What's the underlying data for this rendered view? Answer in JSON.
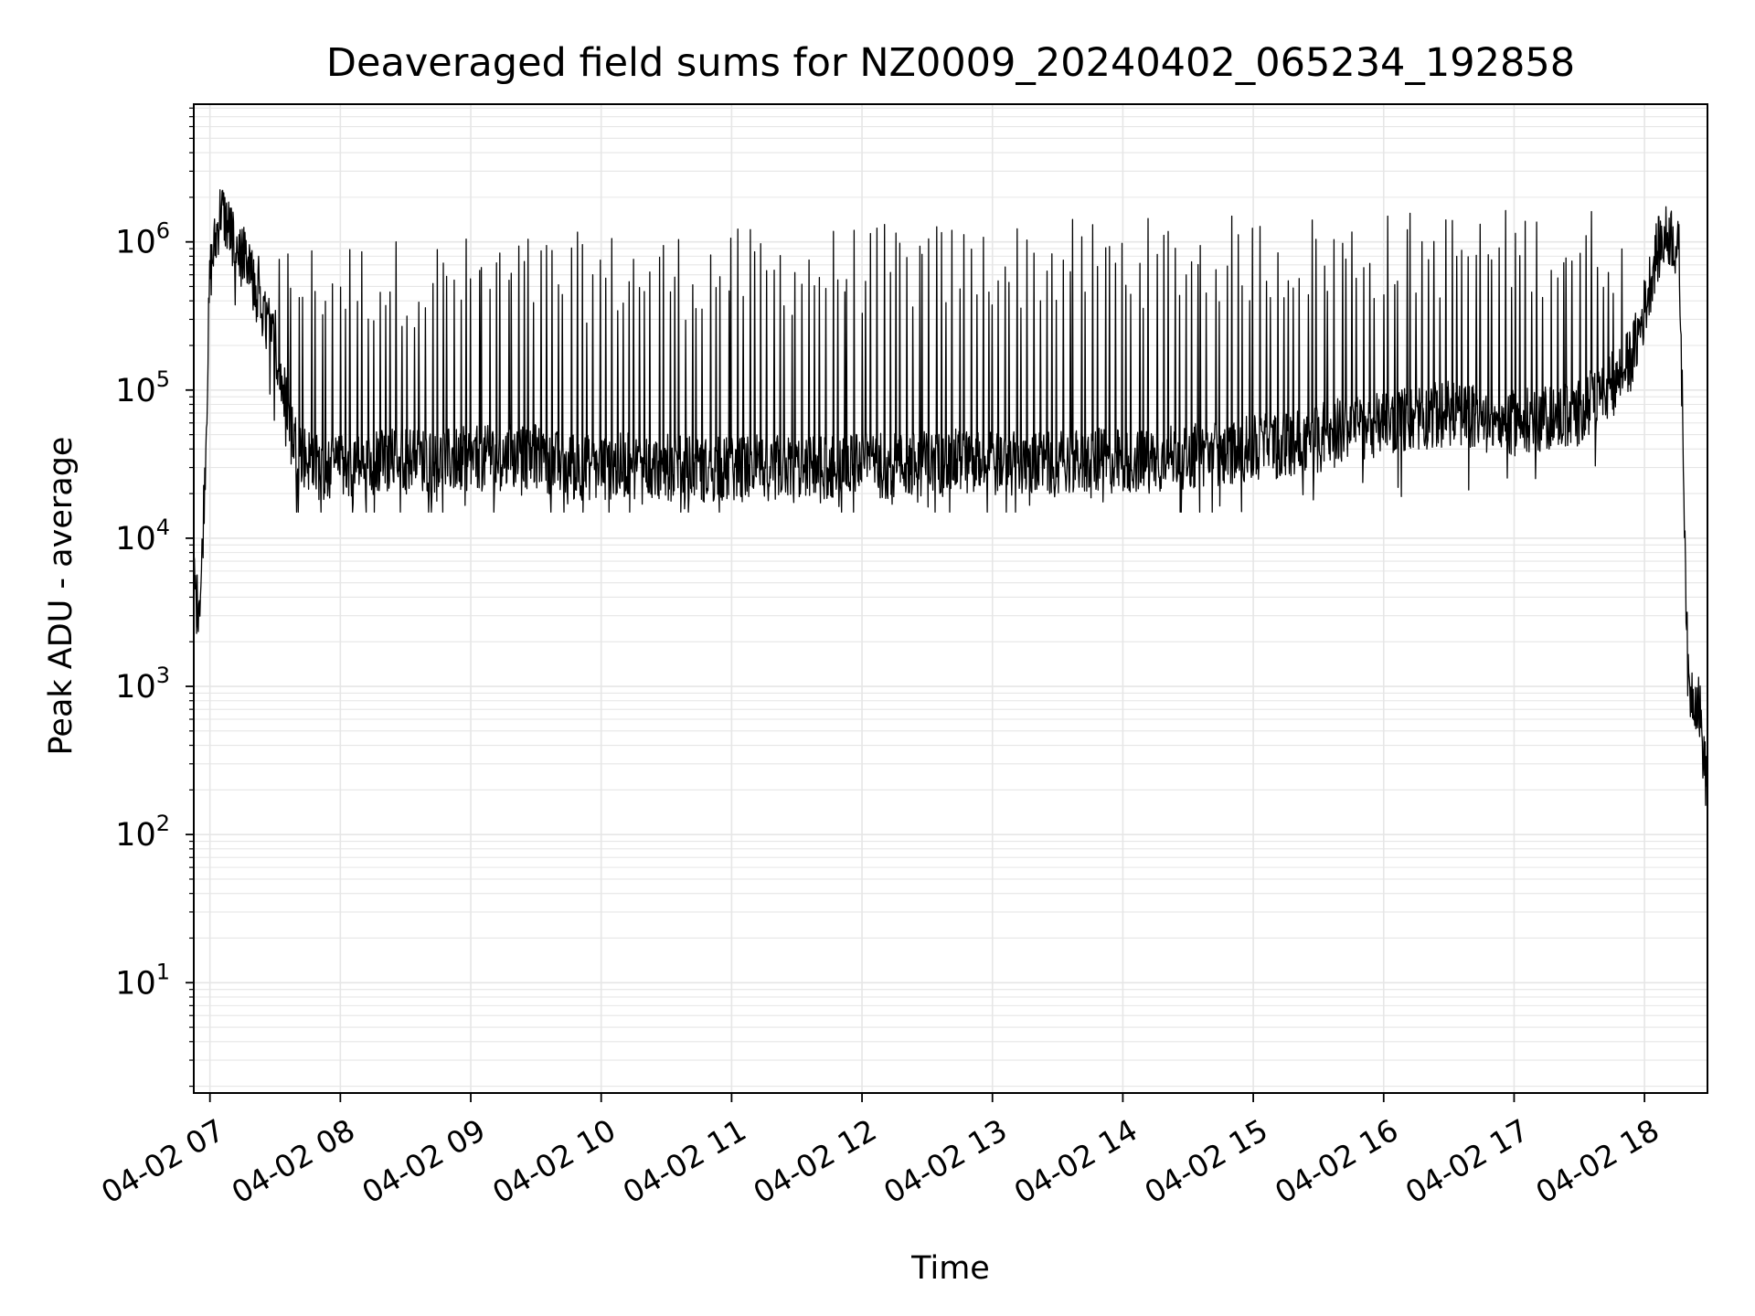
{
  "chart_data": {
    "type": "line",
    "title": "Deaveraged field sums for NZ0009_20240402_065234_192858",
    "xlabel": "Time",
    "ylabel": "Peak ADU - average",
    "y_scale": "log",
    "ylim": [
      1.8,
      8500000
    ],
    "xlim": [
      "2024-04-02 06:52:34",
      "2024-04-02 18:28:58"
    ],
    "grid": true,
    "legend": "none",
    "line_color": "#000000",
    "grid_color": "#e6e6e6",
    "x_ticks": [
      "04-02 07",
      "04-02 08",
      "04-02 09",
      "04-02 10",
      "04-02 11",
      "04-02 12",
      "04-02 13",
      "04-02 14",
      "04-02 15",
      "04-02 16",
      "04-02 17",
      "04-02 18"
    ],
    "y_ticks": [
      {
        "base": "10",
        "exp": "1",
        "value": 10
      },
      {
        "base": "10",
        "exp": "2",
        "value": 100
      },
      {
        "base": "10",
        "exp": "3",
        "value": 1000
      },
      {
        "base": "10",
        "exp": "4",
        "value": 10000
      },
      {
        "base": "10",
        "exp": "5",
        "value": 100000
      },
      {
        "base": "10",
        "exp": "6",
        "value": 1000000
      }
    ],
    "series": [
      {
        "x": [
          "06:52",
          "06:54",
          "06:56",
          "06:58",
          "07:00",
          "07:05",
          "07:10",
          "07:15",
          "07:20",
          "07:25",
          "07:30",
          "07:35",
          "07:40",
          "07:50",
          "08:00",
          "08:15",
          "08:30",
          "08:45",
          "09:00",
          "09:15",
          "09:30",
          "09:45",
          "10:00",
          "10:15",
          "10:30",
          "10:45",
          "11:00",
          "11:15",
          "11:30",
          "11:45",
          "12:00",
          "12:15",
          "12:30",
          "12:45",
          "13:00",
          "13:15",
          "13:30",
          "13:45",
          "14:00",
          "14:15",
          "14:30",
          "14:45",
          "15:00",
          "15:15",
          "15:30",
          "15:45",
          "16:00",
          "16:15",
          "16:30",
          "16:45",
          "17:00",
          "17:15",
          "17:30",
          "17:45",
          "17:50",
          "17:55",
          "18:00",
          "18:05",
          "18:08",
          "18:12",
          "18:16",
          "18:18",
          "18:20",
          "18:25",
          "18:28"
        ],
        "y": [
          7000,
          3500,
          5000,
          40000,
          600000,
          1700000,
          1100000,
          800000,
          500000,
          320000,
          200000,
          80000,
          40000,
          30000,
          30000,
          32000,
          35000,
          33000,
          34000,
          35000,
          36000,
          30000,
          30000,
          31000,
          30000,
          29000,
          29000,
          30000,
          30000,
          30000,
          31000,
          31000,
          32000,
          33000,
          32000,
          31000,
          32000,
          33000,
          33000,
          34000,
          36000,
          38000,
          40000,
          43000,
          50000,
          55000,
          60000,
          65000,
          70000,
          65000,
          60000,
          65000,
          70000,
          110000,
          130000,
          180000,
          350000,
          800000,
          1000000,
          1150000,
          800000,
          30000,
          1000,
          800,
          250
        ]
      }
    ],
    "spikes": {
      "start": "07:10",
      "end": "17:50",
      "count": 240,
      "peak_range": [
        200000,
        1800000
      ],
      "dip_floor": 15000
    }
  }
}
